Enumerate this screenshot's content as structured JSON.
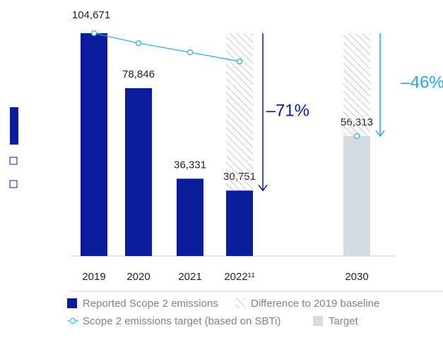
{
  "chart_data": {
    "type": "bar",
    "categories": [
      "2019",
      "2020",
      "2021",
      "2022¹¹",
      null,
      "2030"
    ],
    "ylim": [
      0,
      110000
    ],
    "series": [
      {
        "name": "Reported Scope 2 emissions",
        "color": "#0b1d9a",
        "kind": "bar",
        "values": [
          104671,
          78846,
          36331,
          30751,
          null,
          null
        ],
        "value_labels": [
          "104,671",
          "78,846",
          "36,331",
          "30,751",
          null,
          null
        ]
      },
      {
        "name": "Target",
        "color": "#d3dce3",
        "kind": "bar",
        "values": [
          null,
          null,
          null,
          null,
          null,
          56313
        ],
        "value_labels": [
          null,
          null,
          null,
          null,
          null,
          "56,313"
        ]
      },
      {
        "name": "Difference to 2019 baseline",
        "color": "#c8c8c8",
        "kind": "hatch",
        "values": [
          null,
          null,
          null,
          73920,
          null,
          48358
        ]
      },
      {
        "name": "Scope 2 emissions target (based on SBTi)",
        "color": "#27a9e1",
        "kind": "line",
        "values": [
          104671,
          100000,
          95700,
          91400,
          null,
          56313
        ]
      }
    ],
    "annotations": [
      "–71%",
      "–46%"
    ]
  }
}
